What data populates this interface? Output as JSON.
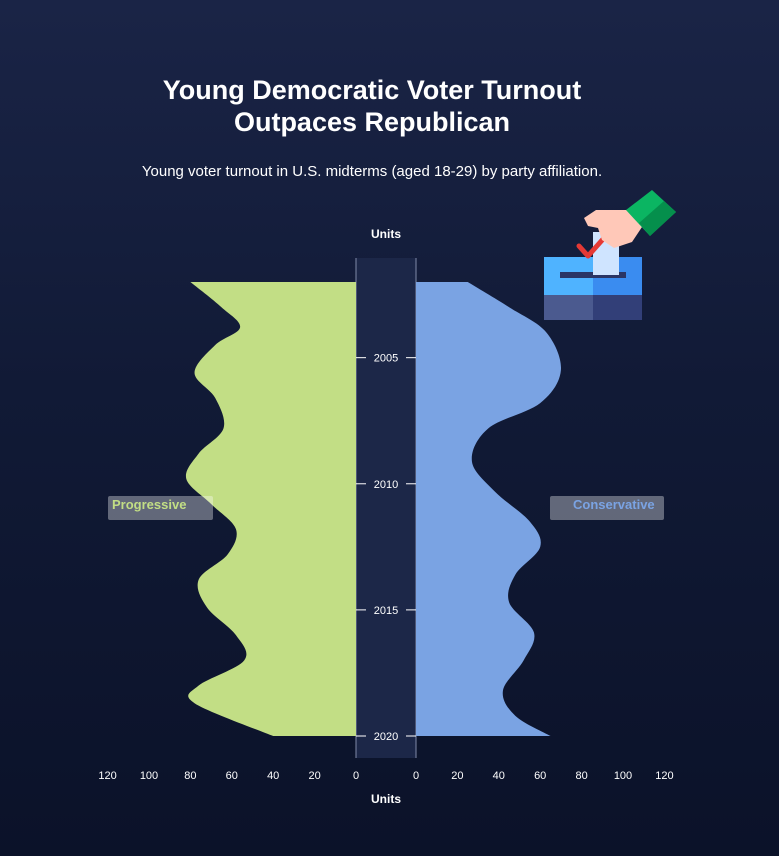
{
  "header": {
    "title_line1": "Young Democratic Voter Turnout",
    "title_line2": "Outpaces Republican",
    "subtitle": "Young voter turnout in U.S. midterms (aged 18-29) by party affiliation."
  },
  "colors": {
    "progressive": "#c2de85",
    "conservative": "#7aa3e3",
    "center_band": "#1c2748",
    "axis_line": "#7f8aa8"
  },
  "icon": "ballot-box-icon",
  "chart_data": {
    "type": "area",
    "layout": "back-to-back",
    "y_ticks": [
      2005,
      2010,
      2015,
      2020
    ],
    "y_range": [
      2002,
      2020
    ],
    "x_ticks": [
      0,
      20,
      40,
      60,
      80,
      100,
      120
    ],
    "x_range": [
      0,
      120
    ],
    "axis_title_top": "Units",
    "axis_title_bottom": "Units",
    "series": [
      {
        "name": "Progressive",
        "side": "left",
        "points": [
          [
            2002.0,
            80
          ],
          [
            2003.0,
            65
          ],
          [
            2003.8,
            56
          ],
          [
            2004.5,
            68
          ],
          [
            2005.6,
            78
          ],
          [
            2006.6,
            68
          ],
          [
            2007.8,
            64
          ],
          [
            2008.8,
            76
          ],
          [
            2009.8,
            82
          ],
          [
            2010.8,
            70
          ],
          [
            2011.8,
            58
          ],
          [
            2012.8,
            62
          ],
          [
            2013.8,
            76
          ],
          [
            2014.9,
            72
          ],
          [
            2016.0,
            58
          ],
          [
            2017.0,
            54
          ],
          [
            2018.0,
            76
          ],
          [
            2018.7,
            78
          ],
          [
            2020.0,
            40
          ]
        ]
      },
      {
        "name": "Conservative",
        "side": "right",
        "points": [
          [
            2002.0,
            25
          ],
          [
            2003.0,
            45
          ],
          [
            2004.0,
            63
          ],
          [
            2005.5,
            70
          ],
          [
            2006.8,
            60
          ],
          [
            2007.8,
            35
          ],
          [
            2009.1,
            27
          ],
          [
            2010.3,
            38
          ],
          [
            2011.5,
            55
          ],
          [
            2012.5,
            60
          ],
          [
            2013.6,
            48
          ],
          [
            2014.7,
            45
          ],
          [
            2015.9,
            57
          ],
          [
            2017.0,
            52
          ],
          [
            2018.2,
            42
          ],
          [
            2019.2,
            48
          ],
          [
            2020.0,
            65
          ]
        ]
      }
    ]
  }
}
